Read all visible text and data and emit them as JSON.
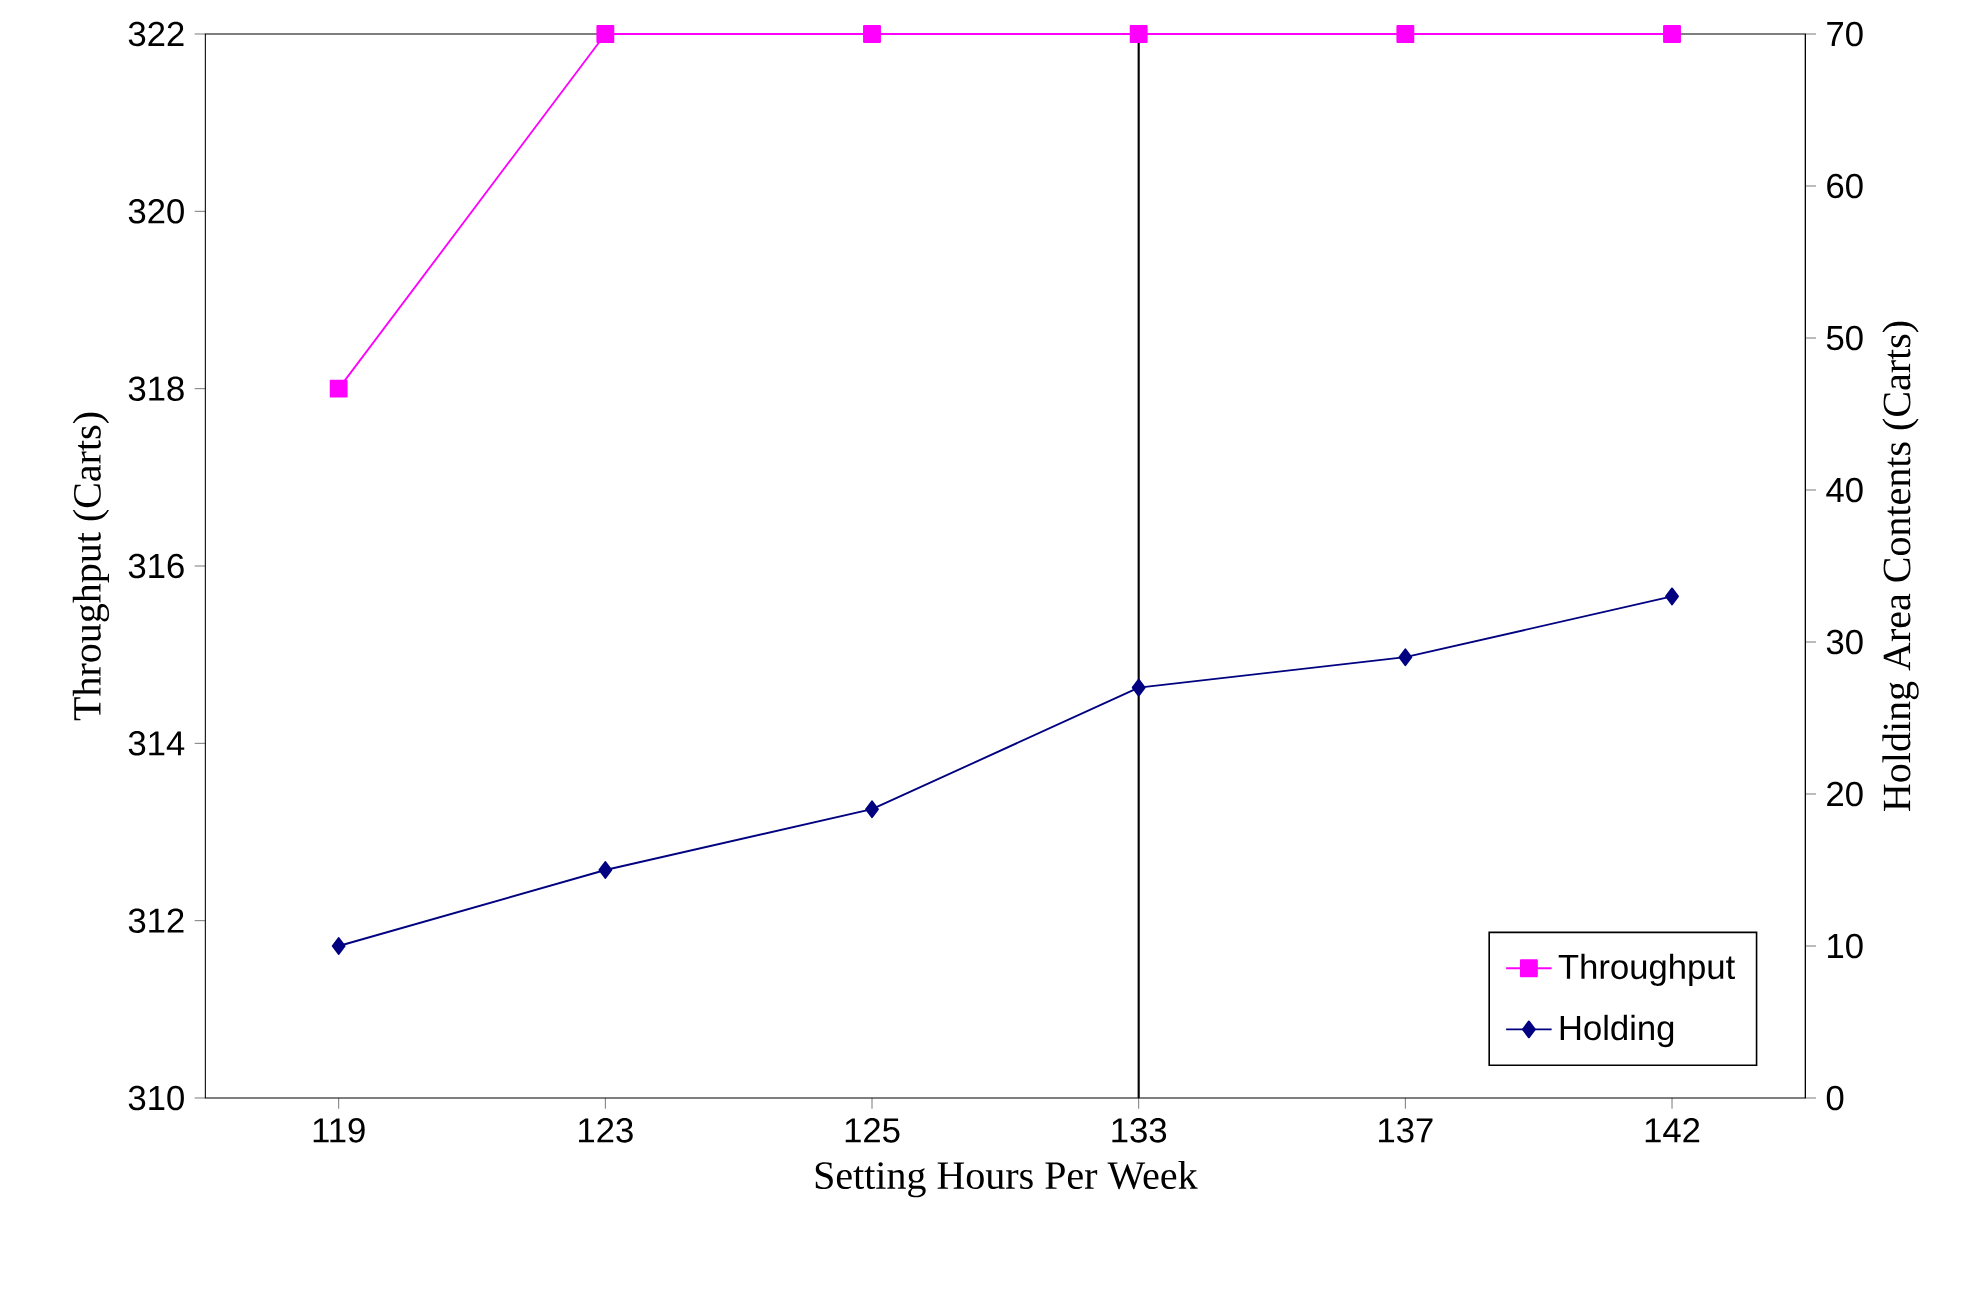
{
  "chart_data": {
    "type": "line",
    "xlabel": "Setting Hours Per Week",
    "ylabel": "Throughput (Carts)",
    "y2label": "Holding Area Contents (Carts)",
    "categories": [
      "119",
      "123",
      "125",
      "133",
      "137",
      "142"
    ],
    "series": [
      {
        "name": "Throughput",
        "color": "#ff00ff",
        "marker": "square",
        "values": [
          318,
          322,
          322,
          322,
          322,
          322
        ]
      },
      {
        "name": "Holding",
        "color": "#000080",
        "marker": "diamond",
        "axis": "y2",
        "values": [
          10,
          15,
          19,
          27,
          29,
          33
        ]
      }
    ],
    "ylim": [
      310,
      322
    ],
    "yticks": [
      310,
      312,
      314,
      316,
      318,
      320,
      322
    ],
    "y2lim": [
      0,
      70
    ],
    "y2ticks": [
      0,
      10,
      20,
      30,
      40,
      50,
      60,
      70
    ],
    "ref_lines": [
      {
        "axis": "x",
        "value": "133",
        "color": "#000000"
      }
    ],
    "legend": "bottom right",
    "grid": false
  }
}
